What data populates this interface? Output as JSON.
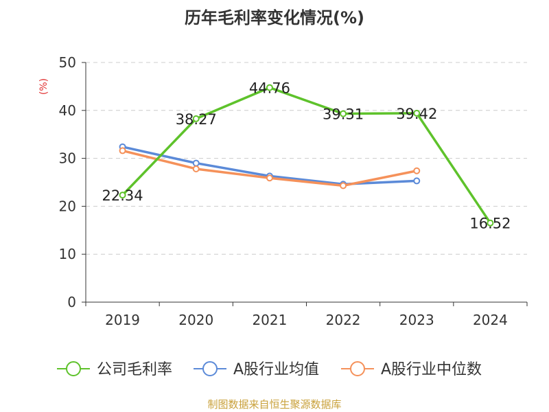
{
  "chart_data": {
    "type": "line",
    "title": "历年毛利率变化情况(%)",
    "ylabel": "(%)",
    "categories": [
      "2019",
      "2020",
      "2021",
      "2022",
      "2023",
      "2024"
    ],
    "ylim": [
      0,
      50
    ],
    "yticks": [
      0,
      10,
      20,
      30,
      40,
      50
    ],
    "grid": true,
    "legend_position": "bottom",
    "series": [
      {
        "name": "公司毛利率",
        "color": "#5ec22b",
        "values": [
          22.34,
          38.27,
          44.76,
          39.31,
          39.42,
          16.52
        ],
        "labels": true
      },
      {
        "name": "A股行业均值",
        "color": "#5b8ad8",
        "values": [
          32.4,
          29.0,
          26.3,
          24.6,
          25.3,
          null
        ],
        "labels": false
      },
      {
        "name": "A股行业中位数",
        "color": "#f5915a",
        "values": [
          31.6,
          27.8,
          25.9,
          24.3,
          27.4,
          null
        ],
        "labels": false
      }
    ]
  },
  "source": "制图数据来自恒生聚源数据库"
}
